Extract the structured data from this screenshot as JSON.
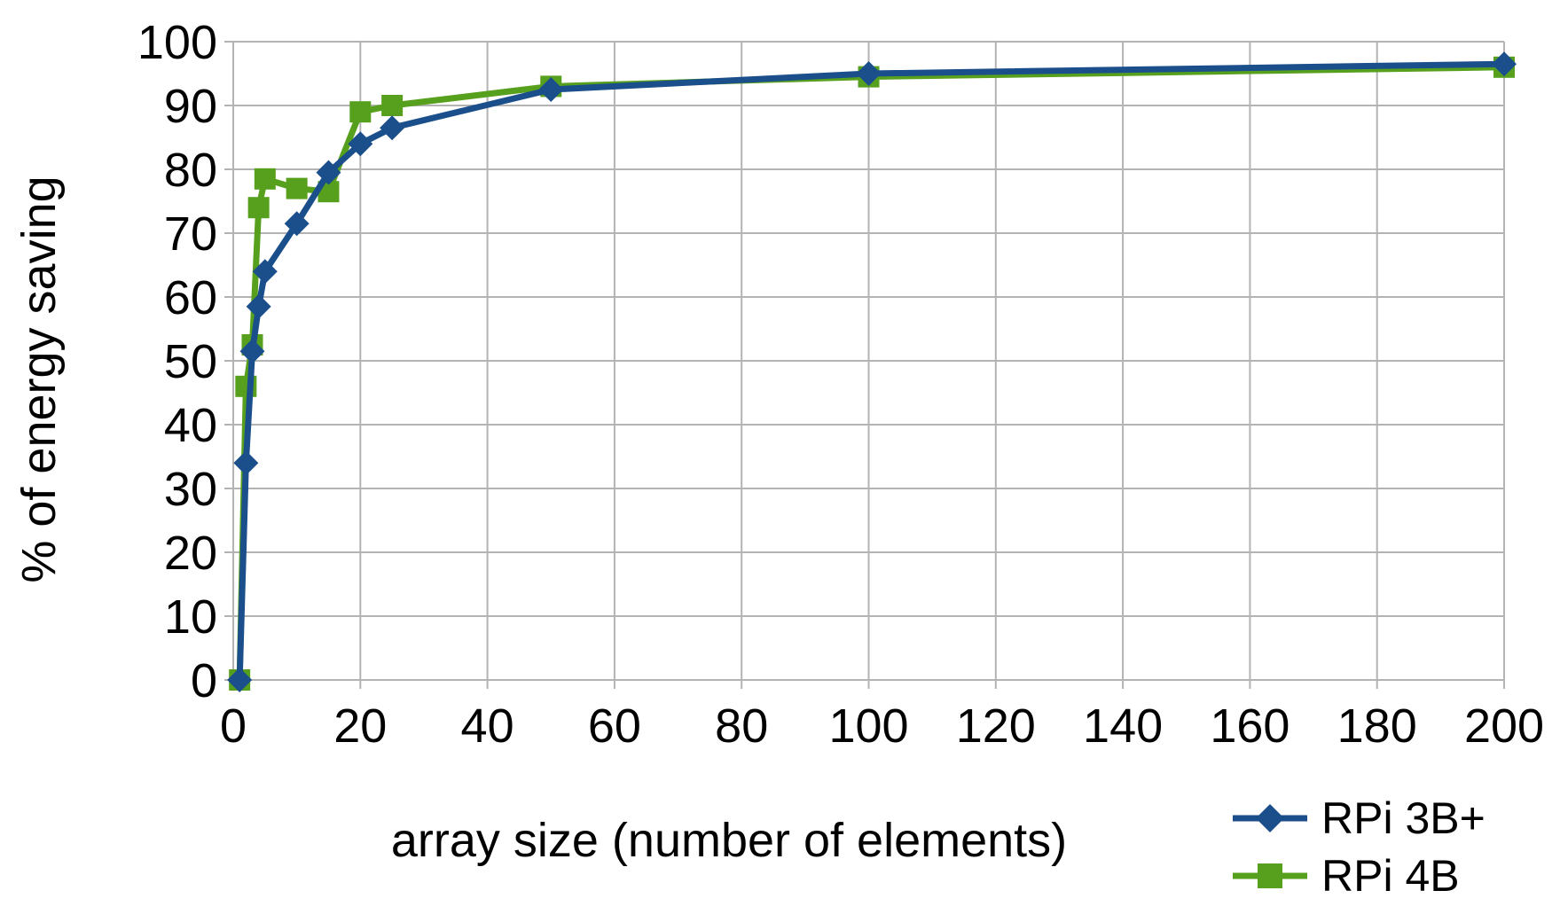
{
  "chart_data": {
    "type": "line",
    "title": "",
    "xlabel": "array size (number of elements)",
    "ylabel": "% of energy saving",
    "xlim": [
      0,
      200
    ],
    "ylim": [
      0,
      100
    ],
    "xticks": [
      0,
      20,
      40,
      60,
      80,
      100,
      120,
      140,
      160,
      180,
      200
    ],
    "yticks": [
      0,
      10,
      20,
      30,
      40,
      50,
      60,
      70,
      80,
      90,
      100
    ],
    "grid": true,
    "legend_position": "bottom-right",
    "series": [
      {
        "name": "RPi 3B+",
        "color": "#1a4f8b",
        "marker": "diamond",
        "x": [
          1,
          2,
          3,
          4,
          5,
          10,
          15,
          20,
          25,
          50,
          100,
          200
        ],
        "y": [
          0,
          34,
          51.5,
          58.5,
          64,
          71.5,
          79.5,
          84,
          86.5,
          92.5,
          95,
          96.5
        ]
      },
      {
        "name": "RPi 4B",
        "color": "#57a01e",
        "marker": "square",
        "x": [
          1,
          2,
          3,
          4,
          5,
          10,
          15,
          20,
          25,
          50,
          100,
          200
        ],
        "y": [
          0,
          46,
          52.5,
          74,
          78.5,
          77,
          76.5,
          89,
          90,
          93,
          94.5,
          96
        ]
      }
    ]
  }
}
